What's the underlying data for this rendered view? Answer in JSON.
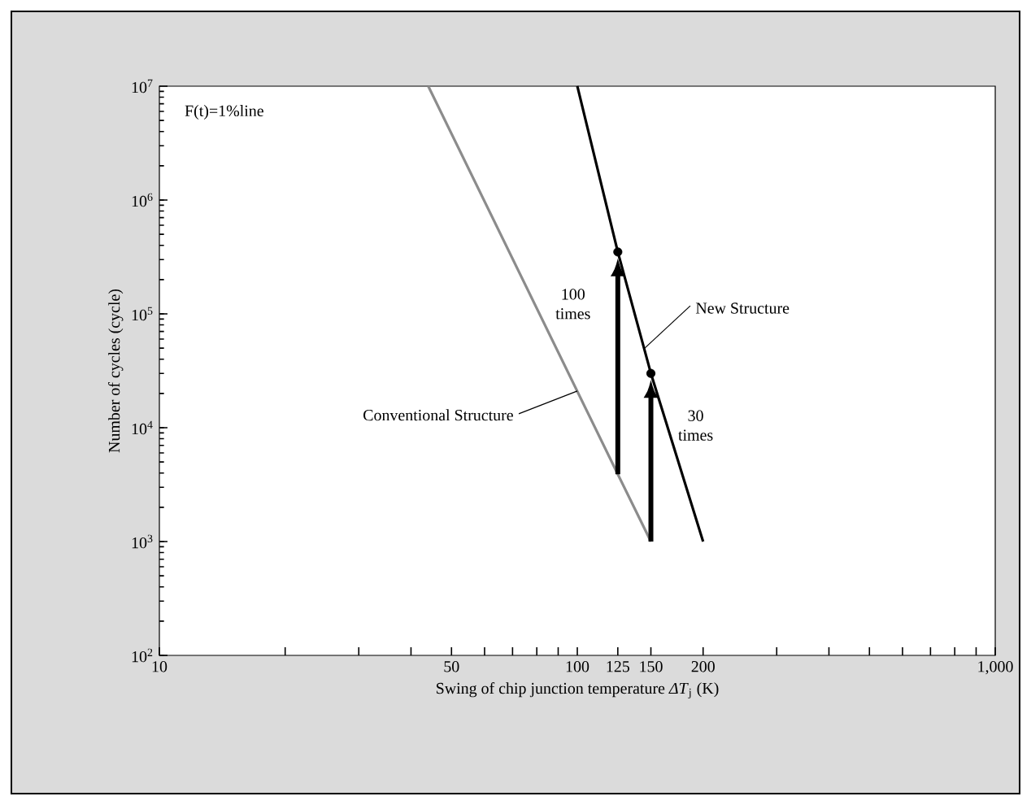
{
  "chart_data": {
    "type": "line",
    "xlabel": "Swing of chip junction temperature *ΔT*$_{j}$ (K)",
    "ylabel": "Number of cycles  (cycle)",
    "xlim": [
      10,
      1000
    ],
    "ylim": [
      100,
      10000000
    ],
    "log": "xy",
    "grid": false,
    "xticks": [
      10,
      {
        "value": 20,
        "label": null
      },
      {
        "value": 30,
        "label": null
      },
      {
        "value": 40,
        "label": null
      },
      50,
      {
        "value": 60,
        "label": null
      },
      {
        "value": 70,
        "label": null
      },
      {
        "value": 80,
        "label": null
      },
      {
        "value": 90,
        "label": null
      },
      100,
      125,
      150,
      200,
      {
        "value": 300,
        "label": null
      },
      {
        "value": 400,
        "label": null
      },
      {
        "value": 500,
        "label": null
      },
      {
        "value": 600,
        "label": null
      },
      {
        "value": 700,
        "label": null
      },
      {
        "value": 800,
        "label": null
      },
      {
        "value": 900,
        "label": null
      },
      {
        "value": 1000,
        "label": "1,000"
      }
    ],
    "yticks": [
      {
        "value": 100,
        "label": "10$^{2}$"
      },
      {
        "value": 1000,
        "label": "10$^{3}$"
      },
      {
        "value": 10000,
        "label": "10$^{4}$"
      },
      {
        "value": 100000,
        "label": "10$^{5}$"
      },
      {
        "value": 1000000,
        "label": "10$^{6}$"
      },
      {
        "value": 10000000,
        "label": "10$^{7}$"
      }
    ],
    "series": [
      {
        "color": "#8c8c8c",
        "x": [
          44,
          125,
          150
        ],
        "values": [
          10000000,
          3900,
          1000
        ]
      },
      {
        "color": "#000000",
        "x": [
          100,
          125,
          150,
          200
        ],
        "values": [
          10000000,
          350000,
          30000,
          1000
        ]
      },
      {
        "type": "scatter",
        "marker": "circle",
        "color": "#000000",
        "x": [
          125,
          150
        ],
        "values": [
          350000,
          30000
        ]
      }
    ],
    "annotations": [
      "F(t)=1%line",
      {
        "text": "New Structure",
        "x": 145,
        "y": 50000
      },
      {
        "text": "Conventional Structure",
        "x": 100,
        "y": 21000
      },
      {
        "text": "100 times",
        "x": 125,
        "y": 350000
      },
      {
        "text": "30 times",
        "x": 150,
        "y": 30000
      }
    ]
  }
}
